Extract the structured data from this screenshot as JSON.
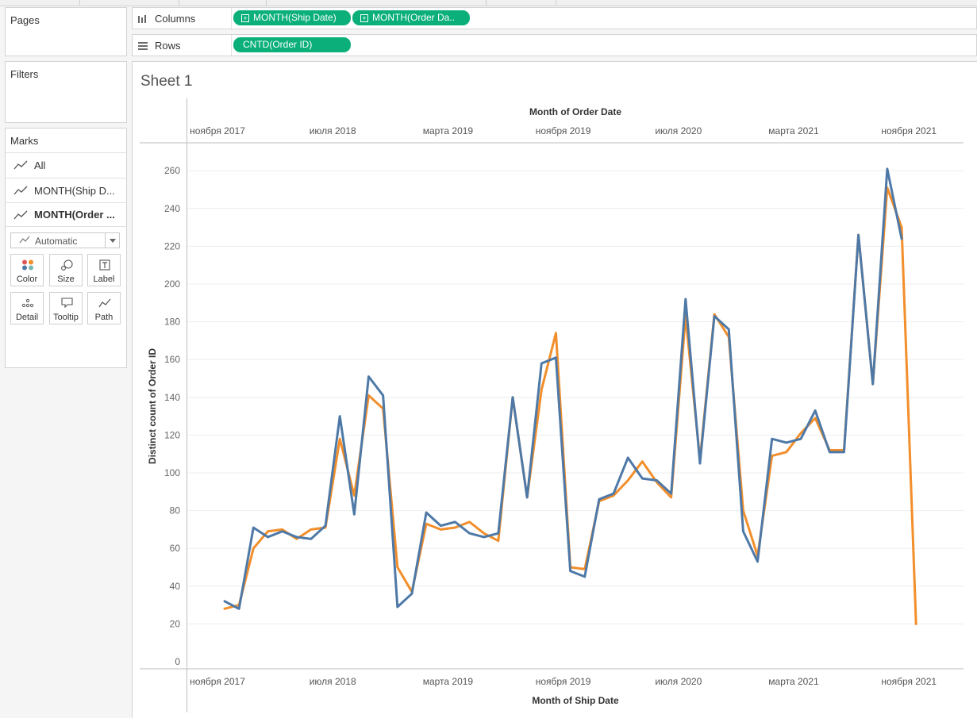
{
  "pages": {
    "title": "Pages"
  },
  "filters": {
    "title": "Filters"
  },
  "marks": {
    "title": "Marks",
    "items": [
      {
        "label": "All",
        "active": false
      },
      {
        "label": "MONTH(Ship D...",
        "active": false
      },
      {
        "label": "MONTH(Order ...",
        "active": true
      }
    ],
    "mark_type": "Automatic",
    "buttons": [
      {
        "label": "Color",
        "icon": "color-dots-icon"
      },
      {
        "label": "Size",
        "icon": "size-bubbles-icon"
      },
      {
        "label": "Label",
        "icon": "label-t-icon"
      },
      {
        "label": "Detail",
        "icon": "detail-dots-icon"
      },
      {
        "label": "Tooltip",
        "icon": "tooltip-bubble-icon"
      },
      {
        "label": "Path",
        "icon": "path-line-icon"
      }
    ]
  },
  "shelves": {
    "columns": {
      "label": "Columns",
      "pills": [
        "MONTH(Ship Date)",
        "MONTH(Order Da.."
      ]
    },
    "rows": {
      "label": "Rows",
      "pills": [
        "CNTD(Order ID)"
      ]
    }
  },
  "colors": {
    "pill": "#0aaf79",
    "series_ship": "#4e79a7",
    "series_order": "#f28e2b"
  },
  "sheet": {
    "title": "Sheet 1"
  },
  "chart_data": {
    "type": "line",
    "title": "Sheet 1",
    "xlabel": "Month of Ship Date",
    "x2label": "Month of Order Date",
    "ylabel": "Distinct count of Order ID",
    "ylim": [
      0,
      270
    ],
    "yticks": [
      0,
      20,
      40,
      60,
      80,
      100,
      120,
      140,
      160,
      180,
      200,
      220,
      240,
      260
    ],
    "xticks": [
      {
        "label": "ноября 2017",
        "index": 0
      },
      {
        "label": "июля 2018",
        "index": 8
      },
      {
        "label": "марта 2019",
        "index": 16
      },
      {
        "label": "ноября 2019",
        "index": 24
      },
      {
        "label": "июля 2020",
        "index": 32
      },
      {
        "label": "марта 2021",
        "index": 40
      },
      {
        "label": "ноября 2021",
        "index": 48
      }
    ],
    "x_start_month": "2017-11",
    "gridlines": true,
    "series": [
      {
        "name": "MONTH(Order Date)",
        "color": "#f28e2b",
        "start_index": 2,
        "values": [
          28,
          30,
          60,
          69,
          70,
          65,
          70,
          71,
          118,
          88,
          141,
          134,
          50,
          37,
          73,
          70,
          71,
          74,
          68,
          64,
          140,
          87,
          144,
          174,
          50,
          49,
          85,
          88,
          96,
          106,
          95,
          87,
          183,
          107,
          184,
          172,
          80,
          56,
          109,
          111,
          121,
          129,
          112,
          112,
          226,
          147,
          251,
          230,
          20
        ]
      },
      {
        "name": "MONTH(Ship Date)",
        "color": "#4e79a7",
        "start_index": 2,
        "values": [
          32,
          28,
          71,
          66,
          69,
          66,
          65,
          72,
          130,
          78,
          151,
          141,
          29,
          36,
          79,
          72,
          74,
          68,
          66,
          68,
          140,
          87,
          158,
          161,
          48,
          45,
          86,
          89,
          108,
          97,
          96,
          89,
          192,
          105,
          183,
          176,
          69,
          53,
          118,
          116,
          118,
          133,
          111,
          111,
          226,
          147,
          261,
          224
        ]
      }
    ]
  }
}
